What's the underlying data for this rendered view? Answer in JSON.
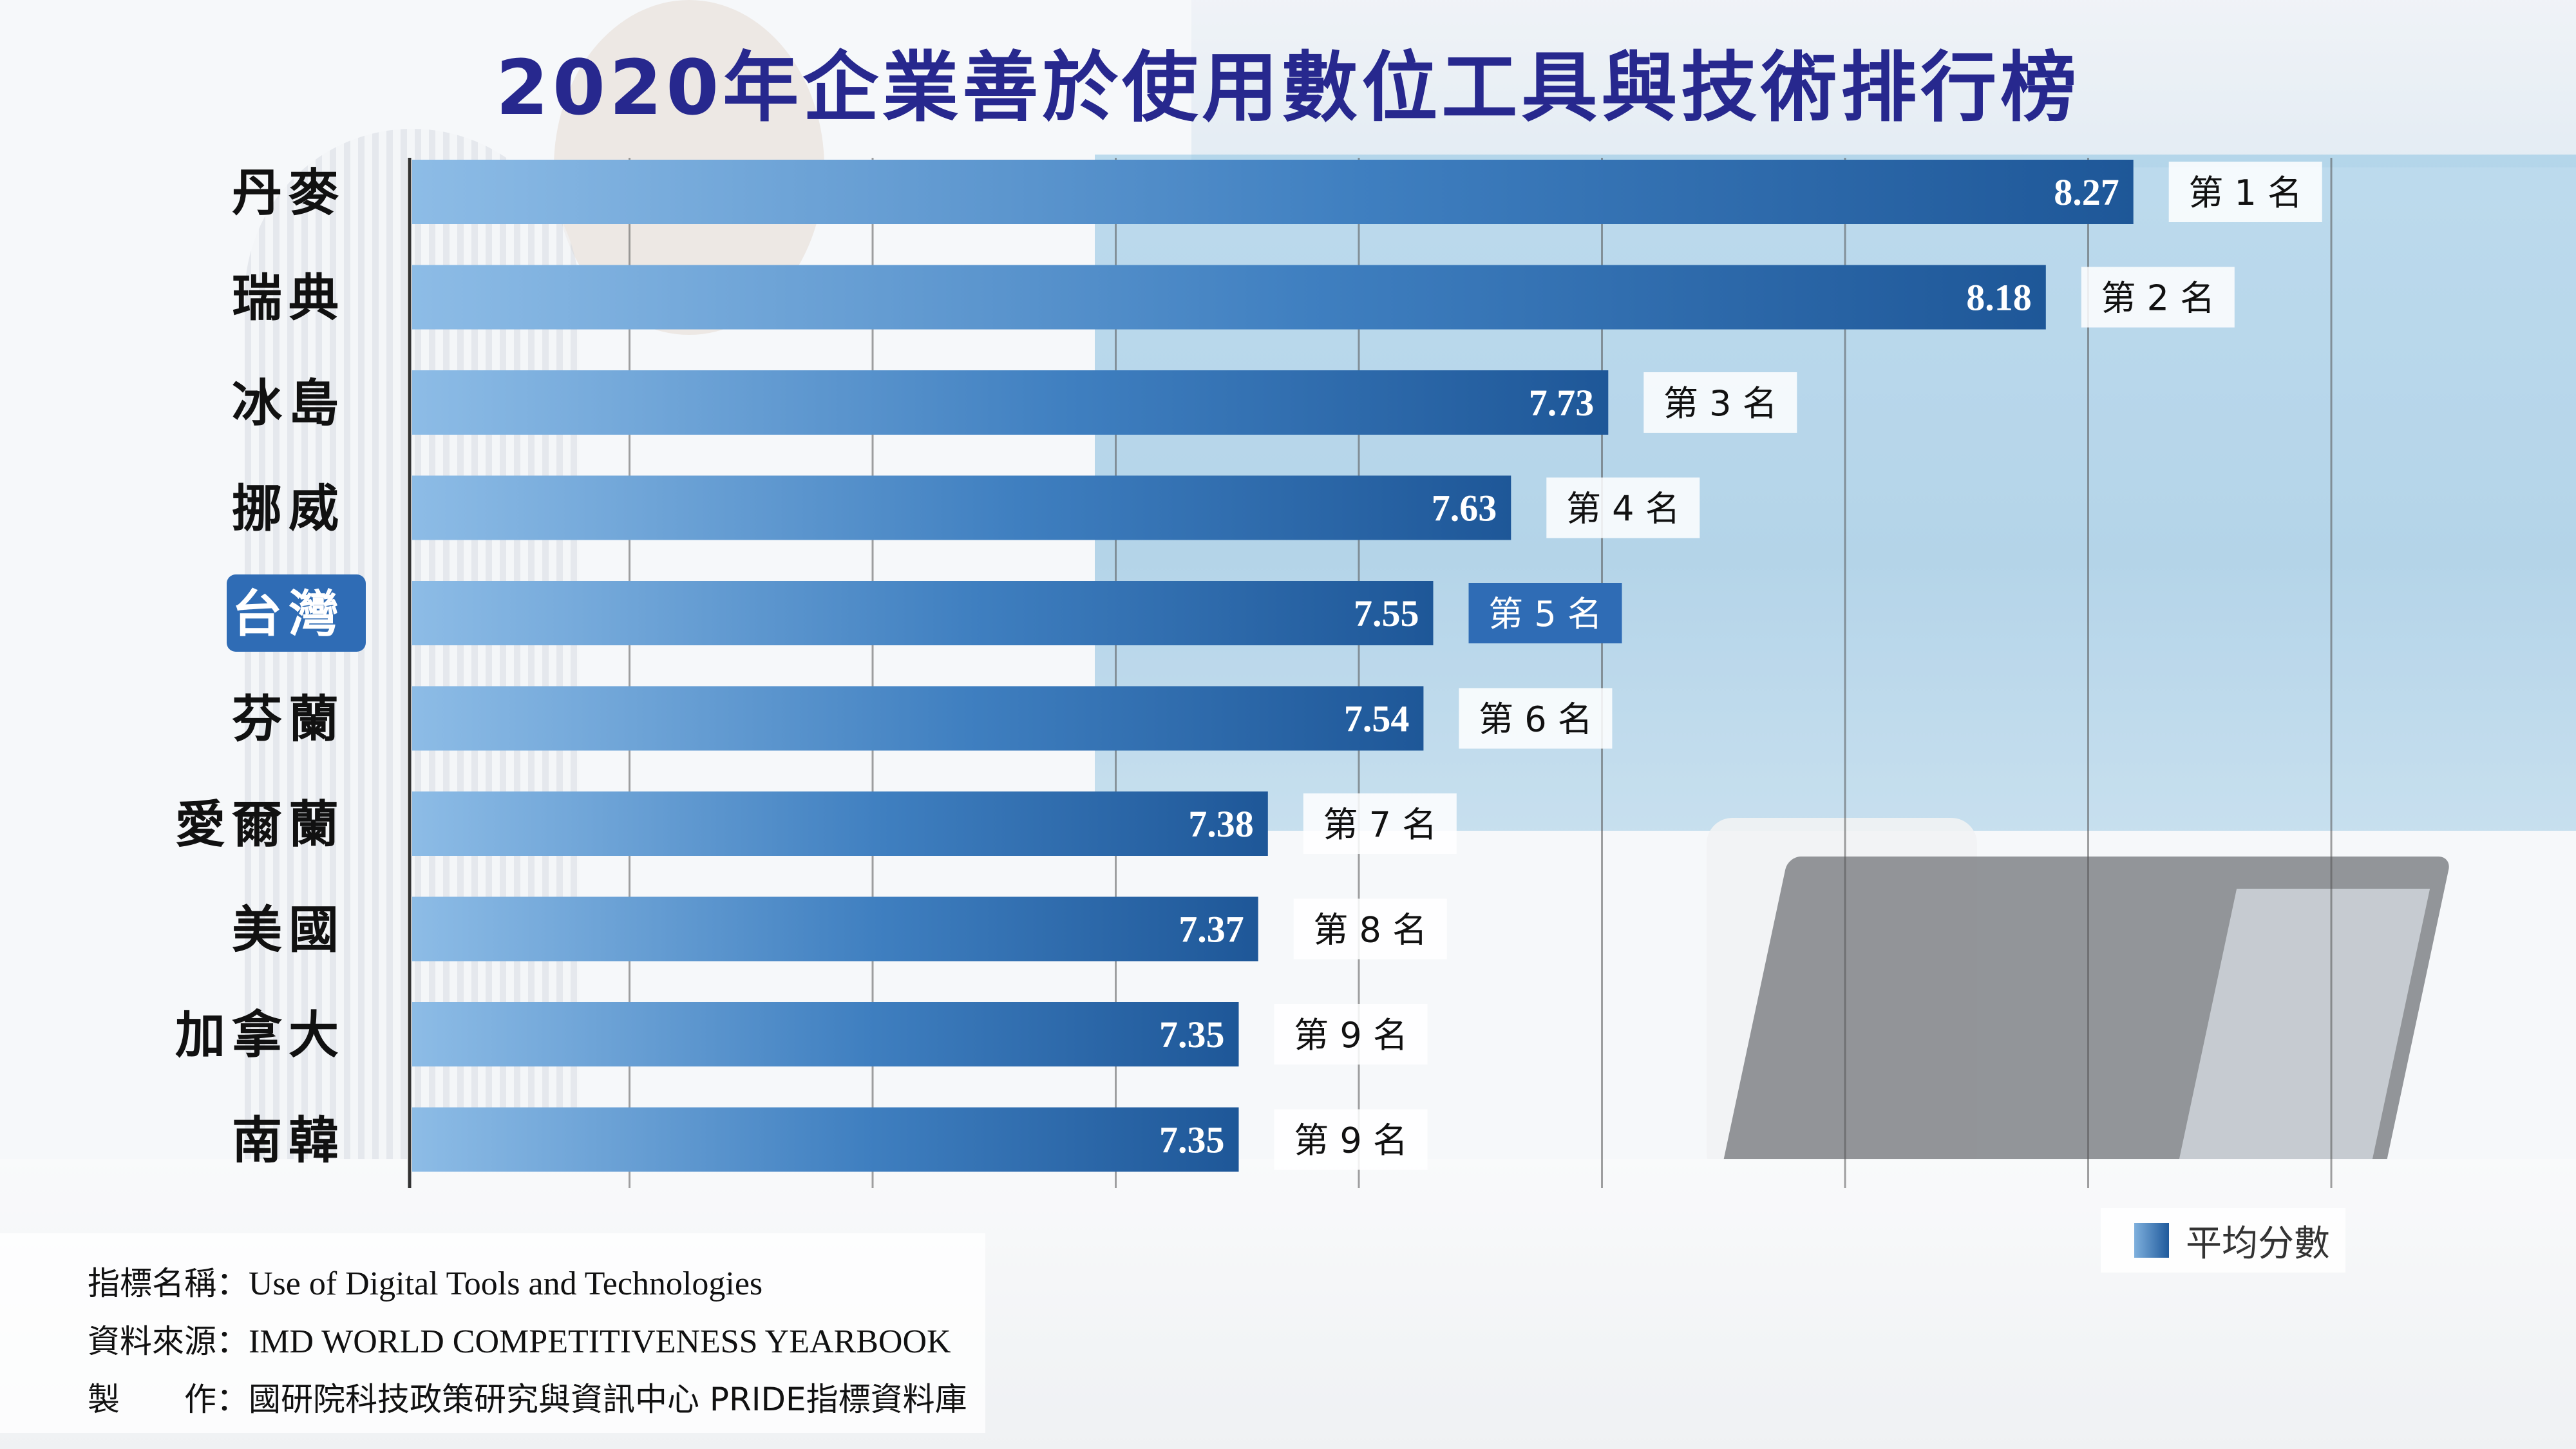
{
  "page": {
    "title": "2020年企業善於使用數位工具與技術排行榜"
  },
  "chart_data": {
    "type": "bar",
    "orientation": "horizontal",
    "title": "2020年企業善於使用數位工具與技術排行榜",
    "categories": [
      "丹麥",
      "瑞典",
      "冰島",
      "挪威",
      "台灣",
      "芬蘭",
      "愛爾蘭",
      "美國",
      "加拿大",
      "南韓"
    ],
    "values": [
      8.27,
      8.18,
      7.73,
      7.63,
      7.55,
      7.54,
      7.38,
      7.37,
      7.35,
      7.35
    ],
    "ranks": [
      "第 1 名",
      "第 2 名",
      "第 3 名",
      "第 4 名",
      "第 5 名",
      "第 6 名",
      "第 7 名",
      "第 8 名",
      "第 9 名",
      "第 9 名"
    ],
    "highlight_category": "台灣",
    "series": [
      {
        "name": "平均分數",
        "values": [
          8.27,
          8.18,
          7.73,
          7.63,
          7.55,
          7.54,
          7.38,
          7.37,
          7.35,
          7.35
        ]
      }
    ],
    "xlim": [
      6.5,
      8.5
    ],
    "grid": true,
    "legend": "bottom-right",
    "colors": {
      "bar_light": "#8dbce6",
      "bar_dark": "#1e5798",
      "highlight": "#2f6cb5",
      "title": "#27288e"
    }
  },
  "legend": {
    "label": "平均分數"
  },
  "footer": {
    "indicator_label": "指標名稱：",
    "indicator_value": "Use of Digital Tools and Technologies",
    "source_label": "資料來源：",
    "source_value": "IMD WORLD COMPETITIVENESS YEARBOOK",
    "producer_label": "製　　作：",
    "producer_value": "國研院科技政策研究與資訊中心 PRIDE指標資料庫"
  }
}
